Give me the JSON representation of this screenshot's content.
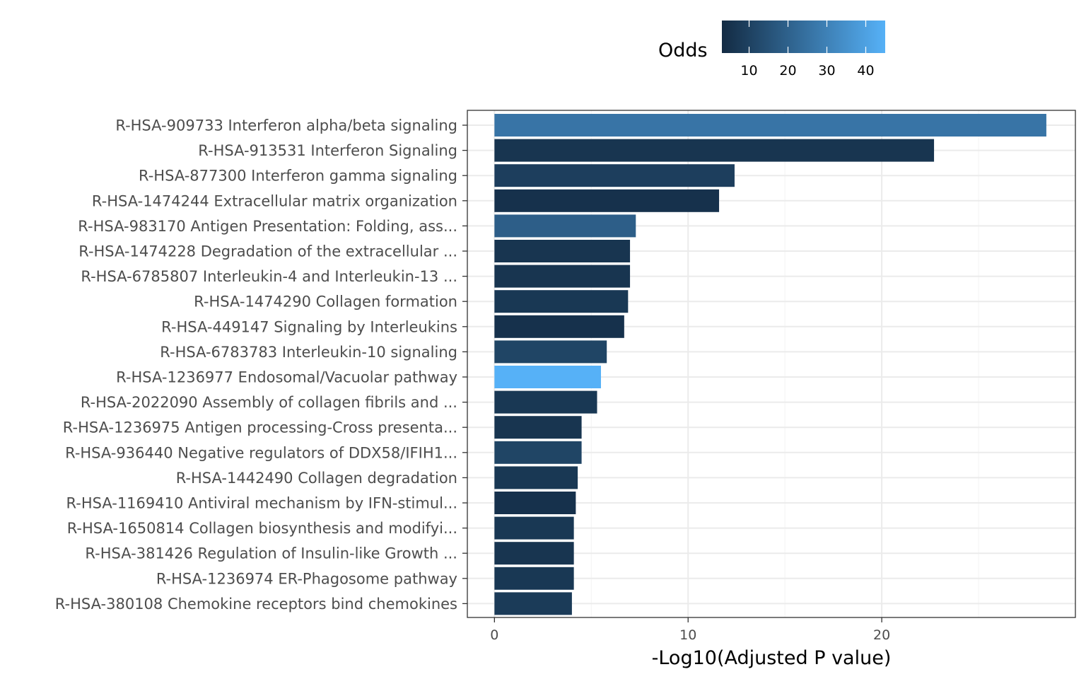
{
  "colors": {
    "low": "#132B43",
    "high": "#56B1F7",
    "grid_major": "#EBEBEB",
    "grid_minor": "#F5F5F5",
    "panel_border": "#333333",
    "axis_text": "#4D4D4D"
  },
  "chart_data": {
    "type": "bar",
    "orientation": "horizontal",
    "xlabel": "-Log10(Adjusted P value)",
    "ylabel": "",
    "xlim": [
      -1.4,
      30.0
    ],
    "x_ticks": [
      "0",
      "10",
      "20"
    ],
    "grid": true,
    "legend": {
      "title": "Odds",
      "type": "colorbar",
      "placement": "top",
      "range": [
        3,
        45
      ],
      "ticks": [
        "10",
        "20",
        "30",
        "40"
      ]
    },
    "categories": [
      "R-HSA-909733 Interferon alpha/beta signaling",
      "R-HSA-913531 Interferon Signaling",
      "R-HSA-877300 Interferon gamma signaling",
      "R-HSA-1474244 Extracellular matrix organization",
      "R-HSA-983170 Antigen Presentation: Folding, ass...",
      "R-HSA-1474228 Degradation of the extracellular ...",
      "R-HSA-6785807 Interleukin-4 and Interleukin-13 ...",
      "R-HSA-1474290 Collagen formation",
      "R-HSA-449147 Signaling by Interleukins",
      "R-HSA-6783783 Interleukin-10 signaling",
      "R-HSA-1236977 Endosomal/Vacuolar pathway",
      "R-HSA-2022090 Assembly of collagen fibrils and ...",
      "R-HSA-1236975 Antigen processing-Cross presenta...",
      "R-HSA-936440 Negative regulators of DDX58/IFIH1...",
      "R-HSA-1442490 Collagen degradation",
      "R-HSA-1169410 Antiviral mechanism by IFN-stimul...",
      "R-HSA-1650814 Collagen biosynthesis and modifyi...",
      "R-HSA-381426 Regulation of Insulin-like Growth ...",
      "R-HSA-1236974 ER-Phagosome pathway",
      "R-HSA-380108 Chemokine receptors bind chemokines"
    ],
    "values": [
      28.5,
      22.7,
      12.4,
      11.6,
      7.3,
      7.0,
      7.0,
      6.9,
      6.7,
      5.8,
      5.5,
      5.3,
      4.5,
      4.5,
      4.3,
      4.2,
      4.1,
      4.1,
      4.1,
      4.0
    ],
    "color_values": [
      26,
      6,
      9,
      5,
      19,
      6,
      6,
      7,
      5,
      11,
      45,
      7,
      6,
      11,
      7,
      5,
      7,
      6,
      7,
      8
    ]
  }
}
